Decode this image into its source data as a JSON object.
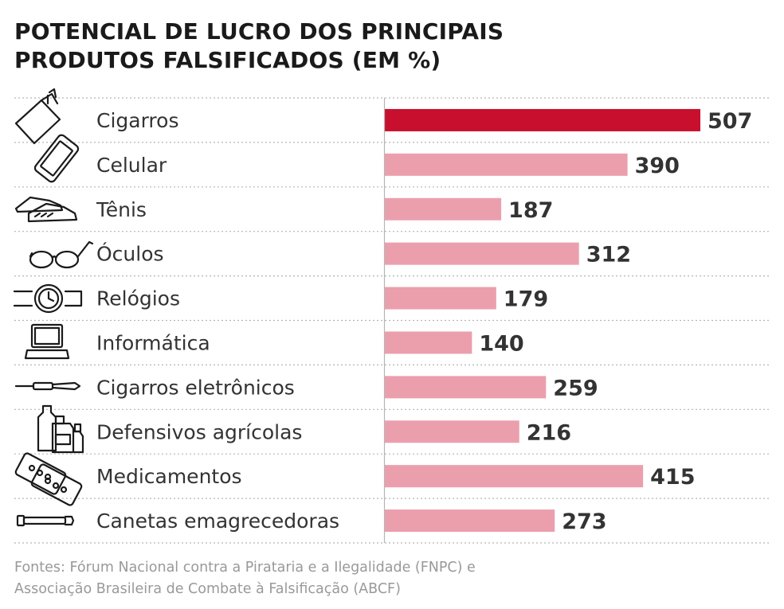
{
  "title_lines": [
    "POTENCIAL DE LUCRO DOS PRINCIPAIS",
    "PRODUTOS FALSIFICADOS (EM %)"
  ],
  "source_lines": [
    "Fontes: Fórum Nacional contra a Pirataria e a Ilegalidade (FNPC) e",
    "Associação Brasileira de Combate à Falsificação (ABCF)"
  ],
  "colors": {
    "highlight": "#c8102e",
    "bar": "#eb9fad",
    "text": "#333333",
    "grid": "#b5b5b5"
  },
  "chart_data": {
    "type": "bar",
    "orientation": "horizontal",
    "title": "POTENCIAL DE LUCRO DOS PRINCIPAIS PRODUTOS FALSIFICADOS (EM %)",
    "categories": [
      "Cigarros",
      "Celular",
      "Tênis",
      "Óculos",
      "Relógios",
      "Informática",
      "Cigarros eletrônicos",
      "Defensivos agrícolas",
      "Medicamentos",
      "Canetas emagrecedoras"
    ],
    "values": [
      507,
      390,
      187,
      312,
      179,
      140,
      259,
      216,
      415,
      273
    ],
    "icons": [
      "cigarette-pack-icon",
      "smartphone-icon",
      "sneakers-icon",
      "glasses-icon",
      "wristwatch-icon",
      "laptop-icon",
      "e-cigarette-icon",
      "pesticide-bottles-icon",
      "pill-blister-icon",
      "injection-pen-icon"
    ],
    "highlight_index": 0,
    "xlim": [
      0,
      507
    ],
    "grid": "dotted row separators",
    "legend": "none"
  }
}
